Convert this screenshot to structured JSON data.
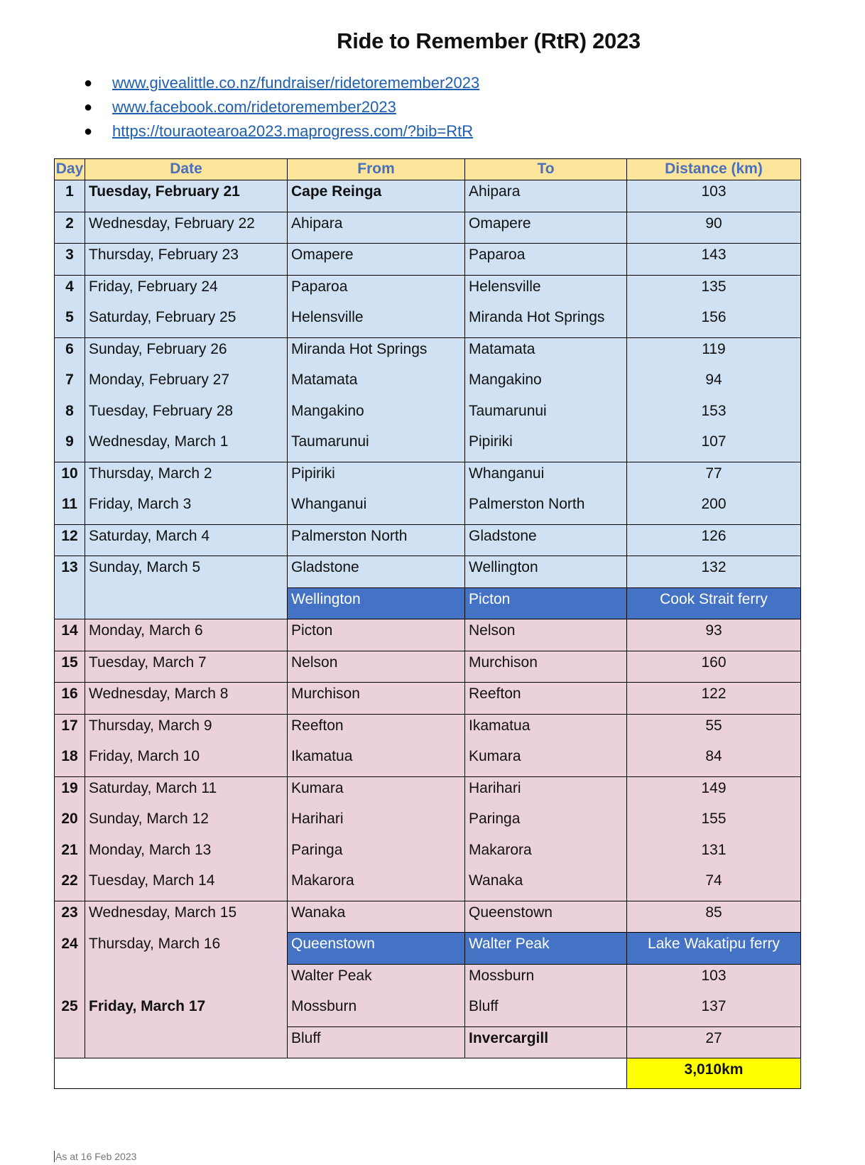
{
  "title": "Ride to Remember (RtR) 2023",
  "links": [
    "www.givealittle.co.nz/fundraiser/ridetoremember2023",
    "www.facebook.com/ridetoremember2023",
    "https://touraotearoa2023.maprogress.com/?bib=RtR"
  ],
  "colors": {
    "header_bg": "#fde59b",
    "header_text": "#4a70bd",
    "north_island": "#cfe1f2",
    "south_island": "#ead1dc",
    "ferry": "#4472c4",
    "total": "#ffff00"
  },
  "table": {
    "headers": [
      "Day",
      "Date",
      "From",
      "To",
      "Distance (km)"
    ],
    "rows": [
      {
        "day": "1",
        "date": "Tuesday, February 21",
        "from": "Cape Reinga",
        "to": "Ahipara",
        "distance": "103",
        "bold": [
          "date",
          "from"
        ]
      },
      {
        "day": "2",
        "date": "Wednesday, February 22",
        "from": "Ahipara",
        "to": "Omapere",
        "distance": "90"
      },
      {
        "day": "3",
        "date": "Thursday, February 23",
        "from": "Omapere",
        "to": "Paparoa",
        "distance": "143"
      },
      {
        "day": "4",
        "date": "Friday, February 24",
        "from": "Paparoa",
        "to": "Helensville",
        "distance": "135"
      },
      {
        "day": "5",
        "date": "Saturday, February 25",
        "from": "Helensville",
        "to": "Miranda Hot Springs",
        "distance": "156"
      },
      {
        "day": "6",
        "date": "Sunday, February 26",
        "from": "Miranda Hot Springs",
        "to": "Matamata",
        "distance": "119"
      },
      {
        "day": "7",
        "date": "Monday, February 27",
        "from": "Matamata",
        "to": "Mangakino",
        "distance": "94"
      },
      {
        "day": "8",
        "date": "Tuesday, February 28",
        "from": "Mangakino",
        "to": "Taumarunui",
        "distance": "153"
      },
      {
        "day": "9",
        "date": "Wednesday, March 1",
        "from": "Taumarunui",
        "to": "Pipiriki",
        "distance": "107"
      },
      {
        "day": "10",
        "date": "Thursday, March 2",
        "from": "Pipiriki",
        "to": "Whanganui",
        "distance": "77"
      },
      {
        "day": "11",
        "date": "Friday, March 3",
        "from": "Whanganui",
        "to": "Palmerston North",
        "distance": "200"
      },
      {
        "day": "12",
        "date": "Saturday, March 4",
        "from": "Palmerston North",
        "to": "Gladstone",
        "distance": "126"
      },
      {
        "day": "13",
        "date": "Sunday, March 5",
        "from": "Gladstone",
        "to": "Wellington",
        "distance": "132"
      },
      {
        "day": "",
        "date": "",
        "from": "Wellington",
        "to": "Picton",
        "distance": "Cook Strait ferry",
        "ferry": true
      },
      {
        "day": "14",
        "date": "Monday, March 6",
        "from": "Picton",
        "to": "Nelson",
        "distance": "93"
      },
      {
        "day": "15",
        "date": "Tuesday, March 7",
        "from": "Nelson",
        "to": "Murchison",
        "distance": "160"
      },
      {
        "day": "16",
        "date": "Wednesday, March 8",
        "from": "Murchison",
        "to": "Reefton",
        "distance": "122"
      },
      {
        "day": "17",
        "date": "Thursday, March 9",
        "from": "Reefton",
        "to": "Ikamatua",
        "distance": "55"
      },
      {
        "day": "18",
        "date": "Friday, March 10",
        "from": "Ikamatua",
        "to": "Kumara",
        "distance": "84"
      },
      {
        "day": "19",
        "date": "Saturday, March 11",
        "from": "Kumara",
        "to": "Harihari",
        "distance": "149"
      },
      {
        "day": "20",
        "date": "Sunday, March 12",
        "from": "Harihari",
        "to": "Paringa",
        "distance": "155"
      },
      {
        "day": "21",
        "date": "Monday, March 13",
        "from": "Paringa",
        "to": "Makarora",
        "distance": "131"
      },
      {
        "day": "22",
        "date": "Tuesday, March 14",
        "from": "Makarora",
        "to": "Wanaka",
        "distance": "74"
      },
      {
        "day": "23",
        "date": "Wednesday, March 15",
        "from": "Wanaka",
        "to": "Queenstown",
        "distance": "85"
      },
      {
        "day": "24",
        "date": "Thursday, March 16",
        "from": "Queenstown",
        "to": "Walter Peak",
        "distance": "Lake Wakatipu ferry",
        "ferry": true
      },
      {
        "day": "",
        "date": "",
        "from": "Walter Peak",
        "to": "Mossburn",
        "distance": "103"
      },
      {
        "day": "25",
        "date": "Friday, March 17",
        "from": "Mossburn",
        "to": "Bluff",
        "distance": "137",
        "bold": [
          "date"
        ]
      },
      {
        "day": "",
        "date": "",
        "from": "Bluff",
        "to": "Invercargill",
        "distance": "27",
        "bold": [
          "to"
        ]
      }
    ],
    "total": "3,010km"
  },
  "footer": "As at 16 Feb 2023"
}
